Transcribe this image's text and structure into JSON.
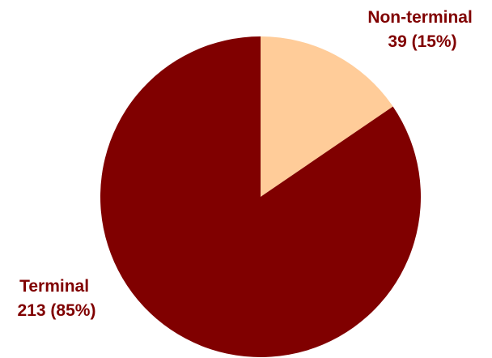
{
  "chart_data": {
    "type": "pie",
    "title": "",
    "start_angle_deg": 0,
    "direction": "clockwise",
    "slices": [
      {
        "label": "Non-terminal",
        "value": 39,
        "percent": "15%",
        "display": "39 (15%)",
        "color": "#FFCC99"
      },
      {
        "label": "Terminal",
        "value": 213,
        "percent": "85%",
        "display": "213 (85%)",
        "color": "#800000"
      }
    ],
    "label_color": "#800000"
  }
}
